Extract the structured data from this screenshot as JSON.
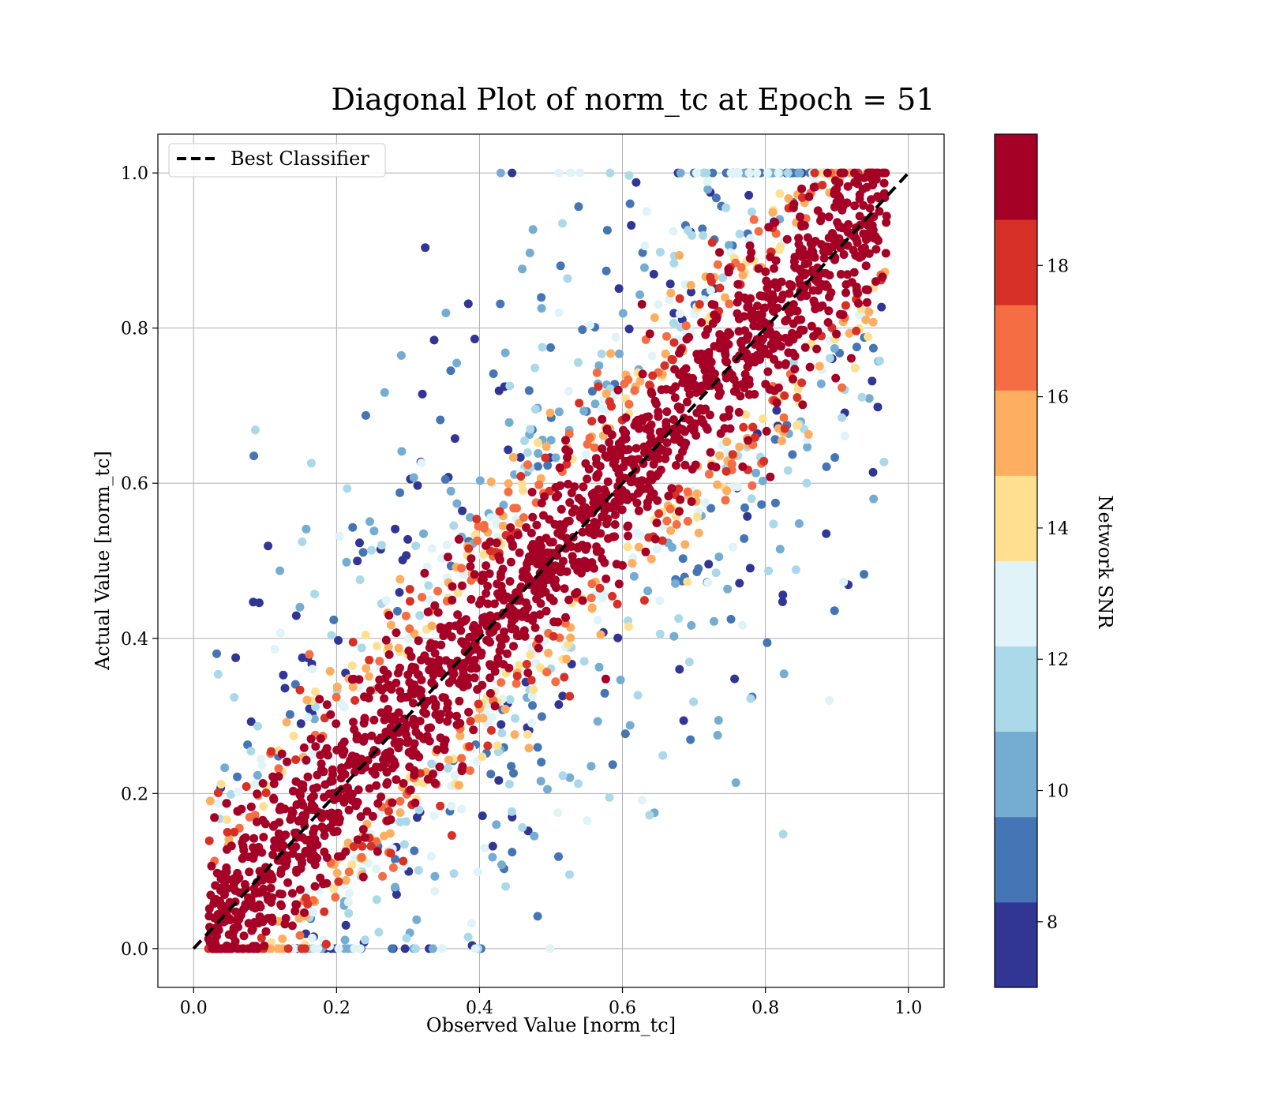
{
  "chart_data": {
    "type": "scatter",
    "title": "Diagonal Plot of norm_tc at Epoch = 51",
    "xlabel": "Observed Value [norm_tc]",
    "ylabel": "Actual Value [norm_tc]",
    "xlim": [
      -0.05,
      1.05
    ],
    "ylim": [
      -0.05,
      1.05
    ],
    "xticks": [
      "0.0",
      "0.2",
      "0.4",
      "0.6",
      "0.8",
      "1.0"
    ],
    "yticks": [
      "0.0",
      "0.2",
      "0.4",
      "0.6",
      "0.8",
      "1.0"
    ],
    "grid": true,
    "legend": {
      "placement": "top-left",
      "entries": [
        "Best Classifier"
      ]
    },
    "reference_line": {
      "name": "Best Classifier",
      "style": "dashed",
      "color": "#000000",
      "x": [
        0,
        1
      ],
      "y": [
        0,
        1
      ]
    },
    "colorbar": {
      "label": "Network SNR",
      "range": [
        7,
        20
      ],
      "ticks": [
        "8",
        "10",
        "12",
        "14",
        "16",
        "18"
      ],
      "tick_values": [
        8,
        10,
        12,
        14,
        16,
        18
      ],
      "colors": [
        "#313695",
        "#4575b4",
        "#74add1",
        "#abd9e9",
        "#e0f3f8",
        "#fee090",
        "#fdae61",
        "#f46d43",
        "#d73027",
        "#a50026"
      ],
      "bin_edges": [
        7,
        8.3,
        9.6,
        10.9,
        12.2,
        13.5,
        14.8,
        16.1,
        17.4,
        18.7,
        20
      ]
    },
    "series_description_values": {
      "high_snr_band_halfwidth": 0.09,
      "point_count_estimate": 3000
    }
  }
}
